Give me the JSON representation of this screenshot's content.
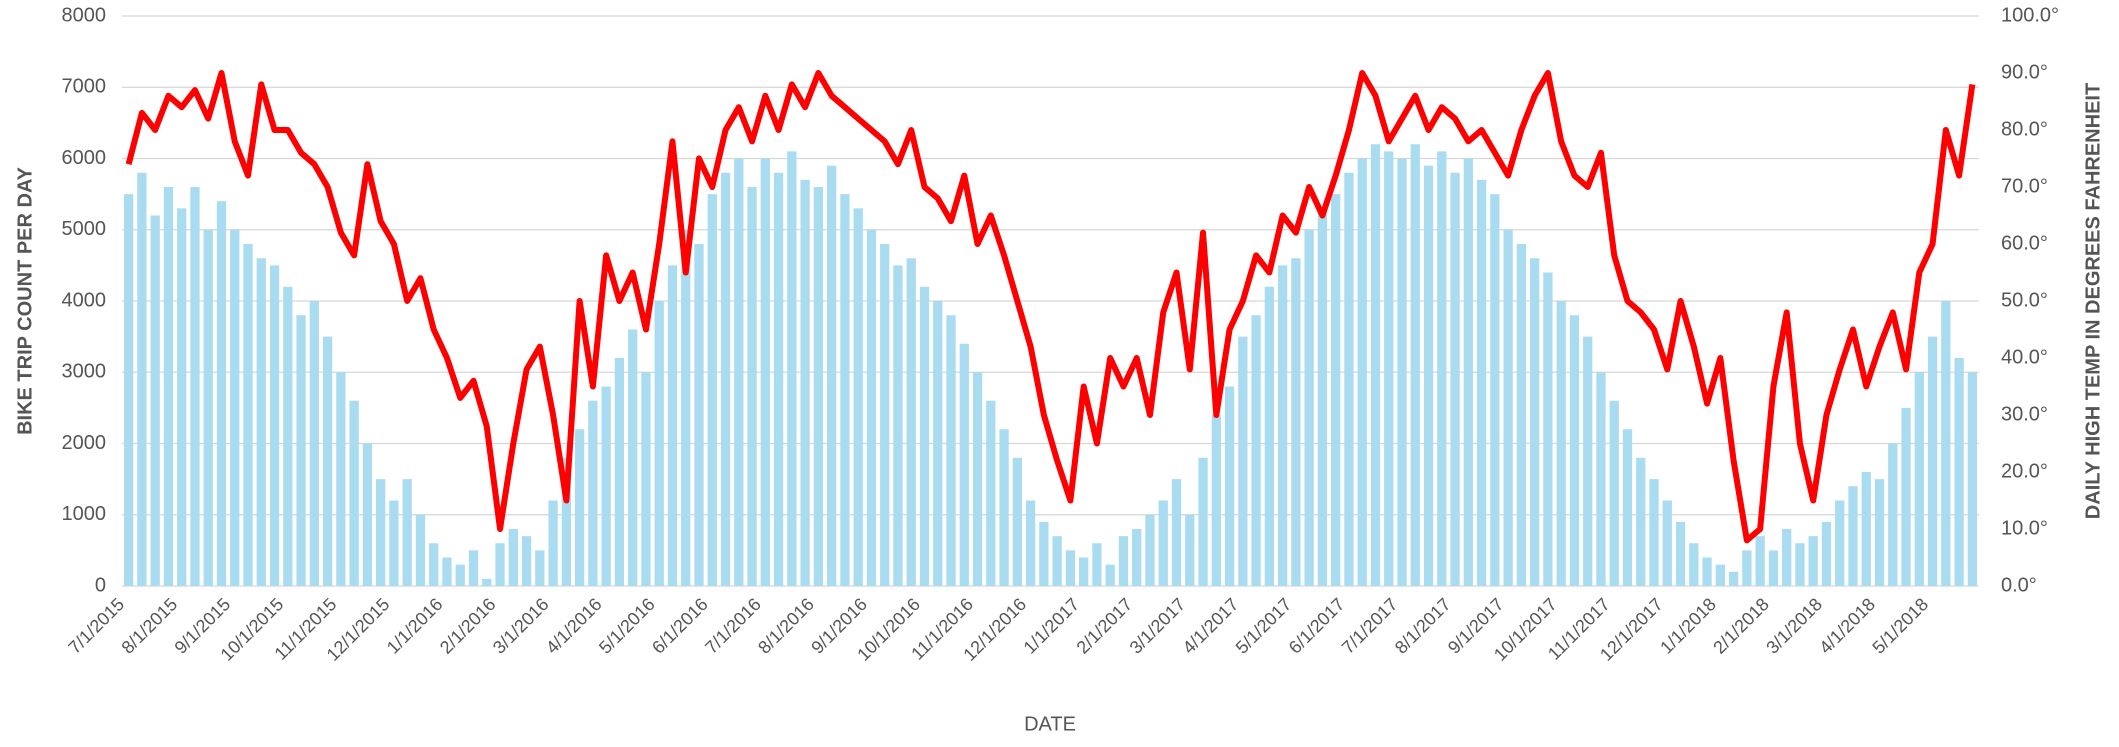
{
  "chart_data": {
    "type": "bar",
    "xlabel": "DATE",
    "ylabel": "BIKE TRIP COUNT PER DAY",
    "y2label": "DAILY HIGH TEMP IN DEGREES FAHRENHEIT",
    "categories": [
      "7/1/2015",
      null,
      null,
      null,
      "8/1/2015",
      null,
      null,
      null,
      "9/1/2015",
      null,
      null,
      null,
      "10/1/2015",
      null,
      null,
      null,
      "11/1/2015",
      null,
      null,
      null,
      "12/1/2015",
      null,
      null,
      null,
      "1/1/2016",
      null,
      null,
      null,
      "2/1/2016",
      null,
      null,
      null,
      "3/1/2016",
      null,
      null,
      null,
      "4/1/2016",
      null,
      null,
      null,
      "5/1/2016",
      null,
      null,
      null,
      "6/1/2016",
      null,
      null,
      null,
      "7/1/2016",
      null,
      null,
      null,
      "8/1/2016",
      null,
      null,
      null,
      "9/1/2016",
      null,
      null,
      null,
      "10/1/2016",
      null,
      null,
      null,
      "11/1/2016",
      null,
      null,
      null,
      "12/1/2016",
      null,
      null,
      null,
      "1/1/2017",
      null,
      null,
      null,
      "2/1/2017",
      null,
      null,
      null,
      "3/1/2017",
      null,
      null,
      null,
      "4/1/2017",
      null,
      null,
      null,
      "5/1/2017",
      null,
      null,
      null,
      "6/1/2017",
      null,
      null,
      null,
      "7/1/2017",
      null,
      null,
      null,
      "8/1/2017",
      null,
      null,
      null,
      "9/1/2017",
      null,
      null,
      null,
      "10/1/2017",
      null,
      null,
      null,
      "11/1/2017",
      null,
      null,
      null,
      "12/1/2017",
      null,
      null,
      null,
      "1/1/2018",
      null,
      null,
      null,
      "2/1/2018",
      null,
      null,
      null,
      "3/1/2018",
      null,
      null,
      null,
      "4/1/2018",
      null,
      null,
      null,
      "5/1/2018",
      null,
      null,
      null
    ],
    "series": [
      {
        "type": "bar",
        "color": "#a9dcf0",
        "values": [
          5500,
          5800,
          5200,
          5600,
          5300,
          5600,
          5000,
          5400,
          5000,
          4800,
          4600,
          4500,
          4200,
          3800,
          4000,
          3500,
          3000,
          2600,
          2000,
          1500,
          1200,
          1500,
          1000,
          600,
          400,
          300,
          500,
          100,
          600,
          800,
          700,
          500,
          1200,
          1800,
          2200,
          2600,
          2800,
          3200,
          3600,
          3000,
          4000,
          4500,
          5000,
          4800,
          5500,
          5800,
          6000,
          5600,
          6000,
          5800,
          6100,
          5700,
          5600,
          5900,
          5500,
          5300,
          5000,
          4800,
          4500,
          4600,
          4200,
          4000,
          3800,
          3400,
          3000,
          2600,
          2200,
          1800,
          1200,
          900,
          700,
          500,
          400,
          600,
          300,
          700,
          800,
          1000,
          1200,
          1500,
          1000,
          1800,
          2400,
          2800,
          3500,
          3800,
          4200,
          4500,
          4600,
          5000,
          5300,
          5500,
          5800,
          6000,
          6200,
          6100,
          6000,
          6200,
          5900,
          6100,
          5800,
          6000,
          5700,
          5500,
          5000,
          4800,
          4600,
          4400,
          4000,
          3800,
          3500,
          3000,
          2600,
          2200,
          1800,
          1500,
          1200,
          900,
          600,
          400,
          300,
          200,
          500,
          700,
          500,
          800,
          600,
          700,
          900,
          1200,
          1400,
          1600,
          1500,
          2000,
          2500,
          3000,
          3500,
          4000,
          3200,
          3000
        ]
      },
      {
        "type": "line",
        "axis": "y2",
        "color": "#ff0000",
        "values": [
          74,
          83,
          80,
          86,
          84,
          87,
          82,
          90,
          78,
          72,
          88,
          80,
          80,
          76,
          74,
          70,
          62,
          58,
          74,
          64,
          60,
          50,
          54,
          45,
          40,
          33,
          36,
          28,
          10,
          25,
          38,
          42,
          30,
          15,
          50,
          35,
          58,
          50,
          55,
          45,
          60,
          78,
          55,
          75,
          70,
          80,
          84,
          78,
          86,
          80,
          88,
          84,
          90,
          86,
          84,
          82,
          80,
          78,
          74,
          80,
          70,
          68,
          64,
          72,
          60,
          65,
          58,
          50,
          42,
          30,
          22,
          15,
          35,
          25,
          40,
          35,
          40,
          30,
          48,
          55,
          38,
          62,
          30,
          45,
          50,
          58,
          55,
          65,
          62,
          70,
          65,
          72,
          80,
          90,
          86,
          78,
          82,
          86,
          80,
          84,
          82,
          78,
          80,
          76,
          72,
          80,
          86,
          90,
          78,
          72,
          70,
          76,
          58,
          50,
          48,
          45,
          38,
          50,
          42,
          32,
          40,
          22,
          8,
          10,
          35,
          48,
          25,
          15,
          30,
          38,
          45,
          35,
          42,
          48,
          38,
          55,
          60,
          80,
          72,
          88
        ]
      }
    ],
    "ylim": [
      0,
      8000
    ],
    "yticks": [
      0,
      1000,
      2000,
      3000,
      4000,
      5000,
      6000,
      7000,
      8000
    ],
    "y2lim": [
      0,
      100
    ],
    "y2ticks": [
      {
        "value": 0,
        "label": "0.0°"
      },
      {
        "value": 10,
        "label": "10.0°"
      },
      {
        "value": 20,
        "label": "20.0°"
      },
      {
        "value": 30,
        "label": "30.0°"
      },
      {
        "value": 40,
        "label": "40.0°"
      },
      {
        "value": 50,
        "label": "50.0°"
      },
      {
        "value": 60,
        "label": "60.0°"
      },
      {
        "value": 70,
        "label": "70.0°"
      },
      {
        "value": 80,
        "label": "80.0°"
      },
      {
        "value": 90,
        "label": "90.0°"
      },
      {
        "value": 100,
        "label": "100.0°"
      }
    ],
    "grid": true
  }
}
